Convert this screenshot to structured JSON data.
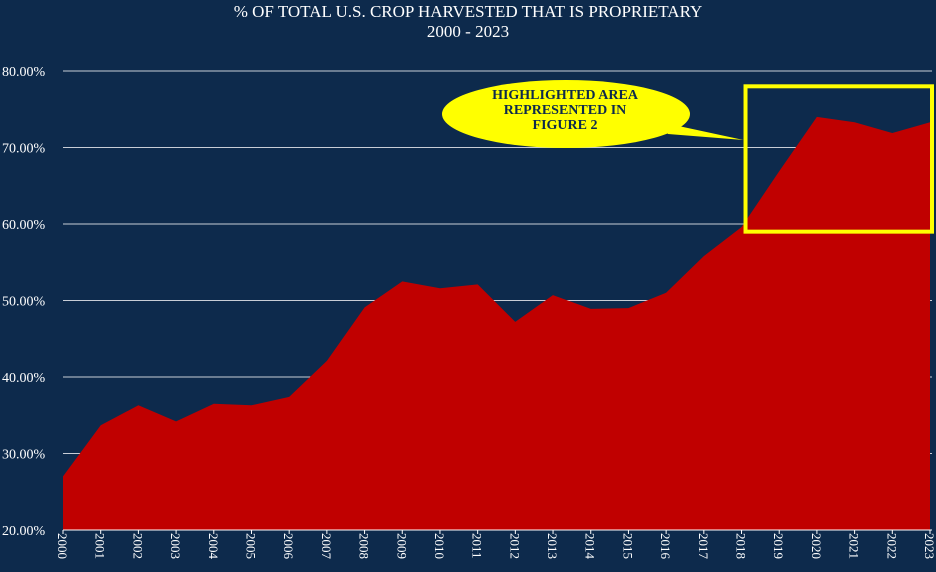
{
  "chart_data": {
    "type": "area",
    "title": "% OF TOTAL U.S. CROP HARVESTED THAT IS PROPRIETARY",
    "subtitle": "2000 - 2023",
    "xlabel": "",
    "ylabel": "",
    "categories": [
      "2000",
      "2001",
      "2002",
      "2003",
      "2004",
      "2005",
      "2006",
      "2007",
      "2008",
      "2009",
      "2010",
      "2011",
      "2012",
      "2013",
      "2014",
      "2015",
      "2016",
      "2017",
      "2018",
      "2019",
      "2020",
      "2021",
      "2022",
      "2023"
    ],
    "values": [
      27.0,
      33.7,
      36.3,
      34.2,
      36.5,
      36.3,
      37.4,
      42.1,
      49.1,
      52.5,
      51.6,
      52.1,
      47.2,
      50.7,
      48.9,
      49.0,
      51.0,
      55.8,
      59.6,
      66.9,
      74.0,
      73.3,
      71.9,
      73.3
    ],
    "ylim": [
      20,
      80
    ],
    "yticks": [
      "20.00%",
      "30.00%",
      "40.00%",
      "50.00%",
      "60.00%",
      "70.00%",
      "80.00%"
    ],
    "ytick_values": [
      20,
      30,
      40,
      50,
      60,
      70,
      80
    ],
    "grid": true,
    "colors": {
      "background": "#0d2a4c",
      "area": "#c00000",
      "grid": "#c8cdd6",
      "highlight_box": "#ffff00",
      "callout_fill": "#ffff00",
      "text": "#ffffff"
    },
    "annotation": {
      "text_lines": [
        "HIGHLIGHTED AREA",
        "REPRESENTED IN",
        "FIGURE 2"
      ],
      "highlight_from": "2018",
      "highlight_to": "2023",
      "highlight_yrange": [
        59.0,
        78.0
      ]
    }
  }
}
